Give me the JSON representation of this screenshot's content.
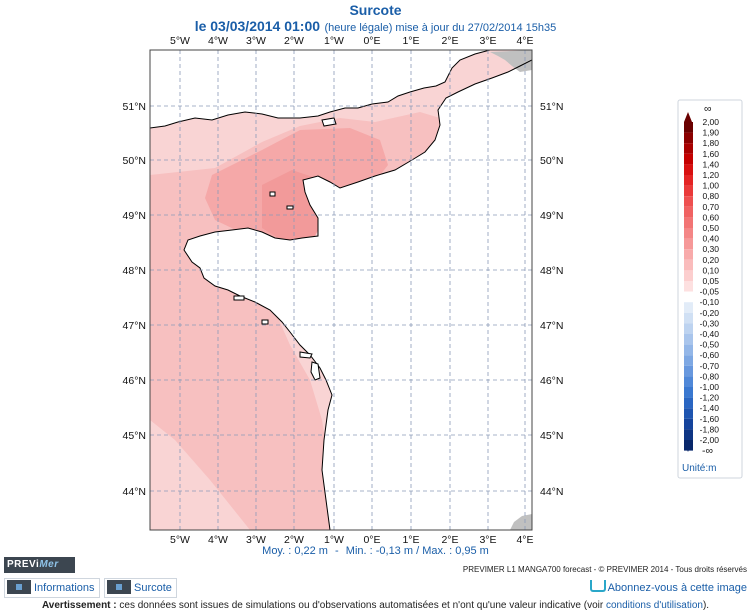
{
  "header": {
    "title": "Surcote",
    "date": "le 03/03/2014 01:00",
    "note": "(heure légale) mise à jour du 27/02/2014 15h35"
  },
  "map": {
    "lon_labels": [
      "5°W",
      "4°W",
      "3°W",
      "2°W",
      "1°W",
      "0°E",
      "1°E",
      "2°E",
      "3°E",
      "4°E"
    ],
    "lat_labels": [
      "51°N",
      "50°N",
      "49°N",
      "48°N",
      "47°N",
      "46°N",
      "45°N",
      "44°N"
    ],
    "land_color": "#ffffff",
    "outside_land_color": "#c0c0c0",
    "sea_colors": {
      "level_0_05": "#f9d4d4",
      "level_0_10": "#f7c0c0",
      "level_0_20": "#f5a8a8",
      "level_0_30": "#f29a9a"
    }
  },
  "legend": {
    "max_symbol": "∞",
    "min_symbol": "-∞",
    "labels": [
      "2,00",
      "1,90",
      "1,80",
      "1,60",
      "1,40",
      "1,20",
      "1,00",
      "0,80",
      "0,70",
      "0,60",
      "0,50",
      "0,40",
      "0,30",
      "0,20",
      "0,10",
      "0,05",
      "-0,05",
      "-0,10",
      "-0,20",
      "-0,30",
      "-0,40",
      "-0,50",
      "-0,60",
      "-0,70",
      "-0,80",
      "-1,00",
      "-1,20",
      "-1,40",
      "-1,60",
      "-1,80",
      "-2,00"
    ],
    "colors": [
      "#6a0000",
      "#8b0000",
      "#a80000",
      "#c40000",
      "#d81010",
      "#e42424",
      "#ea3a3a",
      "#ee5050",
      "#f06262",
      "#f27474",
      "#f48686",
      "#f69898",
      "#f8aaaa",
      "#fabcbc",
      "#fccece",
      "#fde0e0",
      "#ffffff",
      "#e2ecf8",
      "#d0e0f4",
      "#bdd3f0",
      "#a9c5ec",
      "#94b7e8",
      "#7ea8e3",
      "#6898de",
      "#5088d8",
      "#3a78d0",
      "#2a66c2",
      "#1e55b0",
      "#15449c",
      "#0e3584",
      "#08276a"
    ],
    "unit": "Unité:m"
  },
  "stats": {
    "mean": "Moy. : 0,22 m",
    "sep": "-",
    "minmax": "Min. : -0,13 m / Max. : 0,95 m"
  },
  "footer": {
    "logo_prefix": "PREVi",
    "logo_suffix": "Mer",
    "credit": "PREVIMER L1 MANGA700 forecast - © PREVIMER 2014 - Tous droits réservés",
    "info_button": "Informations",
    "surcote_button": "Surcote",
    "subscribe": "Abonnez-vous à cette image",
    "warning_label": "Avertissement :",
    "warning_text": " ces données sont issues de simulations ou d'observations automatisées et n'ont qu'une valeur indicative (voir ",
    "warning_link": "conditions d'utilisation",
    "warning_end": ")."
  }
}
